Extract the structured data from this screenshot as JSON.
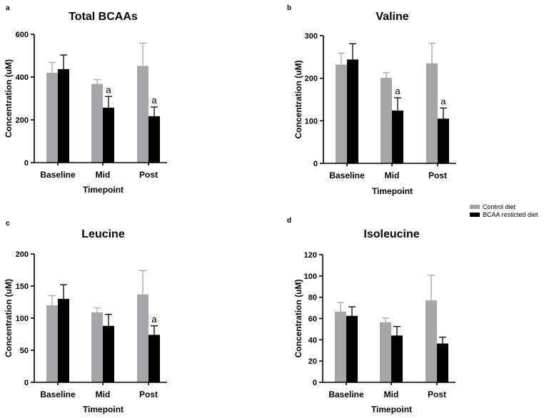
{
  "legend": {
    "entries": [
      {
        "label": "Control diet",
        "color": "#a6a6a8"
      },
      {
        "label": "BCAA resticted diet",
        "color": "#000000"
      }
    ]
  },
  "chart_data": [
    {
      "panel": "a",
      "type": "bar",
      "title": "Total BCAAs",
      "xlabel": "Timepoint",
      "ylabel": "Concentration (uM)",
      "categories": [
        "Baseline",
        "Mid",
        "Post"
      ],
      "ylim": [
        0,
        600
      ],
      "yticks": [
        0,
        200,
        400,
        600
      ],
      "series": [
        {
          "name": "Control diet",
          "color": "#a6a6a8",
          "values": [
            420,
            368,
            452
          ],
          "errors": [
            48,
            20,
            106
          ]
        },
        {
          "name": "BCAA resticted diet",
          "color": "#000000",
          "values": [
            437,
            257,
            217
          ],
          "errors": [
            66,
            52,
            43
          ]
        }
      ],
      "annotations": [
        {
          "category": "Mid",
          "series": 1,
          "text": "a"
        },
        {
          "category": "Post",
          "series": 1,
          "text": "a"
        }
      ]
    },
    {
      "panel": "b",
      "type": "bar",
      "title": "Valine",
      "xlabel": "Timepoint",
      "ylabel": "Concentration (uM)",
      "categories": [
        "Baseline",
        "Mid",
        "Post"
      ],
      "ylim": [
        0,
        300
      ],
      "yticks": [
        0,
        100,
        200,
        300
      ],
      "series": [
        {
          "name": "Control diet",
          "color": "#a6a6a8",
          "values": [
            232,
            201,
            235
          ],
          "errors": [
            27,
            12,
            47
          ]
        },
        {
          "name": "BCAA resticted diet",
          "color": "#000000",
          "values": [
            244,
            124,
            105
          ],
          "errors": [
            37,
            30,
            25
          ]
        }
      ],
      "annotations": [
        {
          "category": "Mid",
          "series": 1,
          "text": "a"
        },
        {
          "category": "Post",
          "series": 1,
          "text": "a"
        }
      ]
    },
    {
      "panel": "c",
      "type": "bar",
      "title": "Leucine",
      "xlabel": "Timepoint",
      "ylabel": "Concentration (uM)",
      "categories": [
        "Baseline",
        "Mid",
        "Post"
      ],
      "ylim": [
        0,
        200
      ],
      "yticks": [
        0,
        50,
        100,
        150,
        200
      ],
      "series": [
        {
          "name": "Control diet",
          "color": "#a6a6a8",
          "values": [
            120,
            109,
            137
          ],
          "errors": [
            15,
            7,
            37
          ]
        },
        {
          "name": "BCAA resticted diet",
          "color": "#000000",
          "values": [
            130,
            88,
            74
          ],
          "errors": [
            22,
            18,
            14
          ]
        }
      ],
      "annotations": [
        {
          "category": "Post",
          "series": 1,
          "text": "a"
        }
      ]
    },
    {
      "panel": "d",
      "type": "bar",
      "title": "Isoleucine",
      "xlabel": "Timepoint",
      "ylabel": "Concentration (uM)",
      "categories": [
        "Baseline",
        "Mid",
        "Post"
      ],
      "ylim": [
        0,
        120
      ],
      "yticks": [
        0,
        20,
        40,
        60,
        80,
        100,
        120
      ],
      "series": [
        {
          "name": "Control diet",
          "color": "#a6a6a8",
          "values": [
            66.5,
            56.5,
            77
          ],
          "errors": [
            8.5,
            4,
            23.5
          ]
        },
        {
          "name": "BCAA resticted diet",
          "color": "#000000",
          "values": [
            62.5,
            44,
            36.5
          ],
          "errors": [
            8.5,
            8.5,
            6
          ]
        }
      ],
      "annotations": []
    }
  ]
}
